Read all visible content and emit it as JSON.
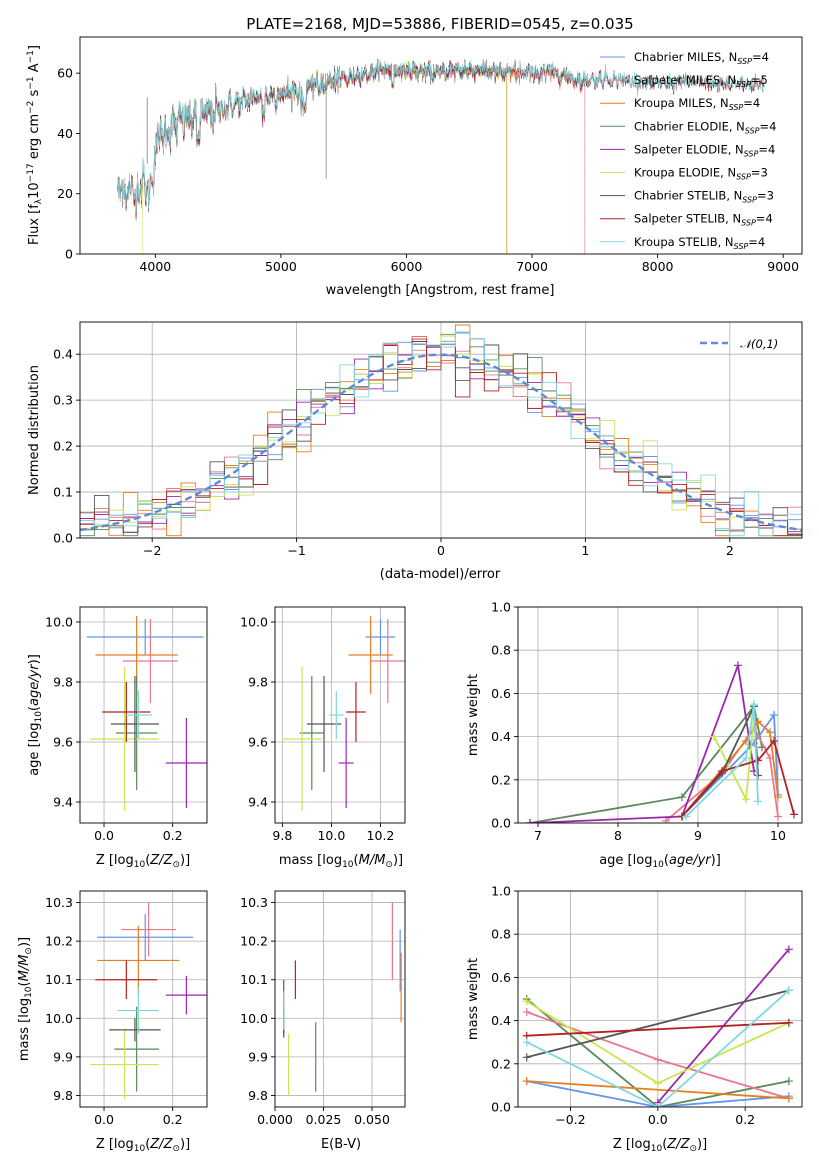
{
  "title": "PLATE=2168, MJD=53886, FIBERID=0545, z=0.035",
  "colors": {
    "Chabrier MILES": "#6495ed",
    "Salpeter MILES": "#e8788c",
    "Kroupa MILES": "#e67e22",
    "Chabrier ELODIE": "#5a8a5a",
    "Salpeter ELODIE": "#9b27b0",
    "Kroupa ELODIE": "#c8e650",
    "Chabrier STELIB": "#555555",
    "Salpeter STELIB": "#b22222",
    "Kroupa STELIB": "#80d8e0",
    "normal": "#5b8bd9"
  },
  "chart_data": [
    {
      "id": "spectrum",
      "type": "line",
      "xlabel": "wavelength [Angstrom, rest frame]",
      "ylabel": "Flux [f_λ10^-17 erg cm^-2 s^-1 A^-1]",
      "xlim": [
        3400,
        9150
      ],
      "ylim": [
        0,
        72
      ],
      "xticks": [
        4000,
        5000,
        6000,
        7000,
        8000,
        9000
      ],
      "yticks": [
        0,
        20,
        40,
        60
      ],
      "legend": [
        {
          "name": "Chabrier MILES",
          "nssp": "4"
        },
        {
          "name": "Salpeter MILES",
          "nssp": "5"
        },
        {
          "name": "Kroupa MILES",
          "nssp": "4"
        },
        {
          "name": "Chabrier ELODIE",
          "nssp": "4"
        },
        {
          "name": "Salpeter ELODIE",
          "nssp": "4"
        },
        {
          "name": "Kroupa ELODIE",
          "nssp": "3"
        },
        {
          "name": "Chabrier STELIB",
          "nssp": "3"
        },
        {
          "name": "Salpeter STELIB",
          "nssp": "4"
        },
        {
          "name": "Kroupa STELIB",
          "nssp": "4"
        }
      ],
      "legend_loc": "upper right",
      "continuum": [
        [
          3700,
          22
        ],
        [
          3850,
          20
        ],
        [
          3950,
          30
        ],
        [
          4050,
          40
        ],
        [
          4200,
          44
        ],
        [
          4400,
          46
        ],
        [
          4600,
          49
        ],
        [
          4800,
          52
        ],
        [
          5000,
          53
        ],
        [
          5200,
          55
        ],
        [
          5400,
          57
        ],
        [
          5600,
          59
        ],
        [
          5800,
          61
        ],
        [
          6000,
          61
        ],
        [
          6200,
          60
        ],
        [
          6400,
          61
        ],
        [
          6600,
          61
        ],
        [
          6800,
          60
        ],
        [
          7000,
          60
        ],
        [
          7200,
          60
        ],
        [
          7400,
          57
        ],
        [
          7600,
          58
        ],
        [
          7800,
          57
        ],
        [
          8000,
          56
        ],
        [
          8200,
          57
        ],
        [
          8400,
          56
        ],
        [
          8600,
          56
        ],
        [
          8850,
          56
        ]
      ],
      "drops": [
        {
          "series": "Kroupa ELODIE",
          "x": 3900
        },
        {
          "series": "Kroupa ELODIE",
          "x": 6795
        },
        {
          "series": "Salpeter MILES",
          "x": 6800
        },
        {
          "series": "Salpeter MILES",
          "x": 7420
        }
      ],
      "series_range": {
        "MILES": [
          3700,
          7420
        ],
        "ELODIE": [
          3900,
          6800
        ],
        "STELIB": [
          3700,
          8850
        ]
      }
    },
    {
      "id": "residuals",
      "type": "step-histogram",
      "xlabel": "(data-model)/error",
      "ylabel": "Normed distribution",
      "xlim": [
        -2.5,
        2.5
      ],
      "ylim": [
        0,
        0.47
      ],
      "xticks": [
        -2,
        -1,
        0,
        1,
        2
      ],
      "yticks": [
        0.0,
        0.1,
        0.2,
        0.3,
        0.4
      ],
      "grid": true,
      "bin_width": 0.1,
      "reference": {
        "name": "𝒩(0,1)",
        "mean": 0,
        "sigma": 1
      },
      "legend_loc": "upper right"
    },
    {
      "id": "age-vs-z",
      "type": "errorbar",
      "xlabel": "Z [log10(Z/Z⊙)]",
      "ylabel": "age [log10(age/yr)]",
      "xlim": [
        -0.07,
        0.3
      ],
      "ylim": [
        9.33,
        10.05
      ],
      "xticks": [
        0.0,
        0.2
      ],
      "yticks": [
        9.4,
        9.6,
        9.8,
        10.0
      ],
      "grid": true,
      "points": [
        {
          "series": "Chabrier MILES",
          "x": 0.12,
          "xerr": 0.17,
          "y": 9.95,
          "yerr": 0.06
        },
        {
          "series": "Salpeter MILES",
          "x": 0.135,
          "xerr": 0.08,
          "y": 9.87,
          "yerr": 0.14
        },
        {
          "series": "Kroupa MILES",
          "x": 0.095,
          "xerr": 0.12,
          "y": 9.89,
          "yerr": 0.13
        },
        {
          "series": "Chabrier ELODIE",
          "x": 0.095,
          "xerr": 0.06,
          "y": 9.63,
          "yerr": 0.19
        },
        {
          "series": "Salpeter ELODIE",
          "x": 0.24,
          "xerr": 0.06,
          "y": 9.53,
          "yerr": 0.15
        },
        {
          "series": "Kroupa ELODIE",
          "x": 0.06,
          "xerr": 0.1,
          "y": 9.61,
          "yerr": 0.24
        },
        {
          "series": "Chabrier STELIB",
          "x": 0.09,
          "xerr": 0.07,
          "y": 9.66,
          "yerr": 0.16
        },
        {
          "series": "Salpeter STELIB",
          "x": 0.065,
          "xerr": 0.07,
          "y": 9.7,
          "yerr": 0.1
        },
        {
          "series": "Kroupa STELIB",
          "x": 0.1,
          "xerr": 0.04,
          "y": 9.69,
          "yerr": 0.08
        }
      ]
    },
    {
      "id": "age-vs-mass",
      "type": "errorbar",
      "xlabel": "mass [log10(M/M⊙)]",
      "xlim": [
        9.77,
        10.3
      ],
      "ylim": [
        9.33,
        10.05
      ],
      "xticks": [
        9.8,
        10.0,
        10.2
      ],
      "yticks": [
        9.4,
        9.6,
        9.8,
        10.0
      ],
      "grid": true,
      "points": [
        {
          "series": "Chabrier MILES",
          "x": 10.2,
          "xerr": 0.06,
          "y": 9.95,
          "yerr": 0.06
        },
        {
          "series": "Salpeter MILES",
          "x": 10.23,
          "xerr": 0.07,
          "y": 9.87,
          "yerr": 0.14
        },
        {
          "series": "Kroupa MILES",
          "x": 10.16,
          "xerr": 0.09,
          "y": 9.89,
          "yerr": 0.13
        },
        {
          "series": "Chabrier ELODIE",
          "x": 9.92,
          "xerr": 0.05,
          "y": 9.63,
          "yerr": 0.19
        },
        {
          "series": "Salpeter ELODIE",
          "x": 10.06,
          "xerr": 0.03,
          "y": 9.53,
          "yerr": 0.15
        },
        {
          "series": "Kroupa ELODIE",
          "x": 9.88,
          "xerr": 0.08,
          "y": 9.61,
          "yerr": 0.24
        },
        {
          "series": "Chabrier STELIB",
          "x": 9.97,
          "xerr": 0.07,
          "y": 9.66,
          "yerr": 0.16
        },
        {
          "series": "Salpeter STELIB",
          "x": 10.1,
          "xerr": 0.04,
          "y": 9.7,
          "yerr": 0.1
        },
        {
          "series": "Kroupa STELIB",
          "x": 10.02,
          "xerr": 0.03,
          "y": 9.69,
          "yerr": 0.08
        }
      ]
    },
    {
      "id": "weight-vs-age",
      "type": "line",
      "xlabel": "age [log10(age/yr)]",
      "ylabel": "mass weight",
      "xlim": [
        6.75,
        10.3
      ],
      "ylim": [
        0,
        1
      ],
      "xticks": [
        7,
        8,
        9,
        10
      ],
      "yticks": [
        0.0,
        0.2,
        0.4,
        0.6,
        0.8,
        1.0
      ],
      "grid": true,
      "series": [
        {
          "name": "Chabrier ELODIE",
          "x": [
            6.9,
            8.8,
            9.7,
            9.8
          ],
          "y": [
            0.0,
            0.12,
            0.54,
            0.35
          ]
        },
        {
          "name": "Chabrier MILES",
          "x": [
            8.8,
            9.7,
            9.95,
            10.0
          ],
          "y": [
            0.03,
            0.37,
            0.5,
            0.13
          ]
        },
        {
          "name": "Salpeter MILES",
          "x": [
            8.6,
            9.3,
            9.7,
            9.9,
            10.0
          ],
          "y": [
            0.01,
            0.23,
            0.44,
            0.3,
            0.03
          ]
        },
        {
          "name": "Kroupa MILES",
          "x": [
            8.8,
            9.6,
            9.75,
            9.9,
            10.0
          ],
          "y": [
            0.03,
            0.38,
            0.47,
            0.42,
            0.12
          ]
        },
        {
          "name": "Salpeter ELODIE",
          "x": [
            6.9,
            8.8,
            9.5,
            9.7
          ],
          "y": [
            0.0,
            0.03,
            0.73,
            0.24
          ]
        },
        {
          "name": "Kroupa ELODIE",
          "x": [
            9.2,
            9.6,
            9.7
          ],
          "y": [
            0.4,
            0.11,
            0.49
          ]
        },
        {
          "name": "Chabrier STELIB",
          "x": [
            8.8,
            9.3,
            9.7,
            9.75
          ],
          "y": [
            0.03,
            0.23,
            0.54,
            0.22
          ]
        },
        {
          "name": "Salpeter STELIB",
          "x": [
            8.8,
            9.3,
            9.75,
            9.95,
            10.2
          ],
          "y": [
            0.03,
            0.24,
            0.29,
            0.38,
            0.04
          ]
        },
        {
          "name": "Kroupa STELIB",
          "x": [
            8.85,
            9.6,
            9.7,
            9.75
          ],
          "y": [
            0.03,
            0.3,
            0.55,
            0.1
          ]
        }
      ]
    },
    {
      "id": "mass-vs-z",
      "type": "errorbar",
      "xlabel": "Z [log10(Z/Z⊙)]",
      "ylabel": "mass [log10(M/M⊙)]",
      "xlim": [
        -0.07,
        0.3
      ],
      "ylim": [
        9.77,
        10.33
      ],
      "xticks": [
        0.0,
        0.2
      ],
      "yticks": [
        9.8,
        9.9,
        10.0,
        10.1,
        10.2,
        10.3
      ],
      "grid": true,
      "points": [
        {
          "series": "Chabrier MILES",
          "x": 0.12,
          "xerr": 0.14,
          "y": 10.21,
          "yerr": 0.06
        },
        {
          "series": "Salpeter MILES",
          "x": 0.13,
          "xerr": 0.08,
          "y": 10.23,
          "yerr": 0.07
        },
        {
          "series": "Kroupa MILES",
          "x": 0.1,
          "xerr": 0.12,
          "y": 10.15,
          "yerr": 0.09
        },
        {
          "series": "Chabrier ELODIE",
          "x": 0.095,
          "xerr": 0.065,
          "y": 9.92,
          "yerr": 0.11
        },
        {
          "series": "Salpeter ELODIE",
          "x": 0.24,
          "xerr": 0.06,
          "y": 10.06,
          "yerr": 0.05
        },
        {
          "series": "Kroupa ELODIE",
          "x": 0.06,
          "xerr": 0.1,
          "y": 9.88,
          "yerr": 0.09
        },
        {
          "series": "Chabrier STELIB",
          "x": 0.09,
          "xerr": 0.075,
          "y": 9.97,
          "yerr": 0.03
        },
        {
          "series": "Salpeter STELIB",
          "x": 0.065,
          "xerr": 0.09,
          "y": 10.1,
          "yerr": 0.05
        },
        {
          "series": "Kroupa STELIB",
          "x": 0.1,
          "xerr": 0.06,
          "y": 10.02,
          "yerr": 0.06
        }
      ]
    },
    {
      "id": "mass-vs-ebv",
      "type": "errorbar",
      "xlabel": "E(B-V)",
      "xlim": [
        0.0,
        0.067
      ],
      "ylim": [
        9.77,
        10.33
      ],
      "xticks": [
        0.0,
        0.025,
        0.05
      ],
      "xticklabels": [
        "0.000",
        "0.025",
        "0.050"
      ],
      "yticks": [
        9.8,
        9.9,
        10.0,
        10.1,
        10.2,
        10.3
      ],
      "grid": true,
      "points": [
        {
          "series": "Chabrier MILES",
          "x": 0.0645,
          "y": 10.15,
          "yerr": 0.08
        },
        {
          "series": "Salpeter MILES",
          "x": 0.0605,
          "y": 10.2,
          "yerr": 0.1
        },
        {
          "series": "Kroupa MILES",
          "x": 0.065,
          "y": 10.08,
          "yerr": 0.09
        },
        {
          "series": "Chabrier ELODIE",
          "x": 0.021,
          "y": 9.9,
          "yerr": 0.09
        },
        {
          "series": "Salpeter ELODIE",
          "x": 0.0045,
          "y": 10.03,
          "yerr": 0.07
        },
        {
          "series": "Kroupa ELODIE",
          "x": 0.007,
          "y": 9.88,
          "yerr": 0.08
        },
        {
          "series": "Chabrier STELIB",
          "x": 0.0045,
          "y": 9.99,
          "yerr": 0.04
        },
        {
          "series": "Salpeter STELIB",
          "x": 0.0105,
          "y": 10.1,
          "yerr": 0.05
        },
        {
          "series": "Kroupa STELIB",
          "x": 0.0045,
          "y": 10.02,
          "yerr": 0.05
        }
      ]
    },
    {
      "id": "weight-vs-z",
      "type": "line",
      "xlabel": "Z [log10(Z/Z⊙)]",
      "ylabel": "mass weight",
      "xlim": [
        -0.32,
        0.33
      ],
      "ylim": [
        0,
        1
      ],
      "xticks": [
        -0.2,
        0.0,
        0.2
      ],
      "yticks": [
        0.0,
        0.2,
        0.4,
        0.6,
        0.8,
        1.0
      ],
      "grid": true,
      "series": [
        {
          "name": "Chabrier ELODIE",
          "x": [
            -0.3,
            0.0,
            0.3
          ],
          "y": [
            0.5,
            0.0,
            0.12
          ]
        },
        {
          "name": "Chabrier MILES",
          "x": [
            -0.3,
            0.0,
            0.3
          ],
          "y": [
            0.12,
            0.0,
            0.05
          ]
        },
        {
          "name": "Salpeter MILES",
          "x": [
            -0.3,
            0.0,
            0.3
          ],
          "y": [
            0.44,
            0.22,
            0.04
          ]
        },
        {
          "name": "Kroupa MILES",
          "x": [
            -0.3,
            0.3
          ],
          "y": [
            0.12,
            0.04
          ]
        },
        {
          "name": "Salpeter ELODIE",
          "x": [
            0.0,
            0.3
          ],
          "y": [
            0.02,
            0.73
          ]
        },
        {
          "name": "Kroupa ELODIE",
          "x": [
            -0.3,
            0.0,
            0.3
          ],
          "y": [
            0.49,
            0.11,
            0.39
          ]
        },
        {
          "name": "Chabrier STELIB",
          "x": [
            -0.3,
            0.3
          ],
          "y": [
            0.23,
            0.54
          ]
        },
        {
          "name": "Salpeter STELIB",
          "x": [
            -0.3,
            0.3
          ],
          "y": [
            0.33,
            0.39
          ]
        },
        {
          "name": "Kroupa STELIB",
          "x": [
            -0.3,
            0.0,
            0.3
          ],
          "y": [
            0.3,
            0.0,
            0.54
          ]
        }
      ]
    }
  ]
}
